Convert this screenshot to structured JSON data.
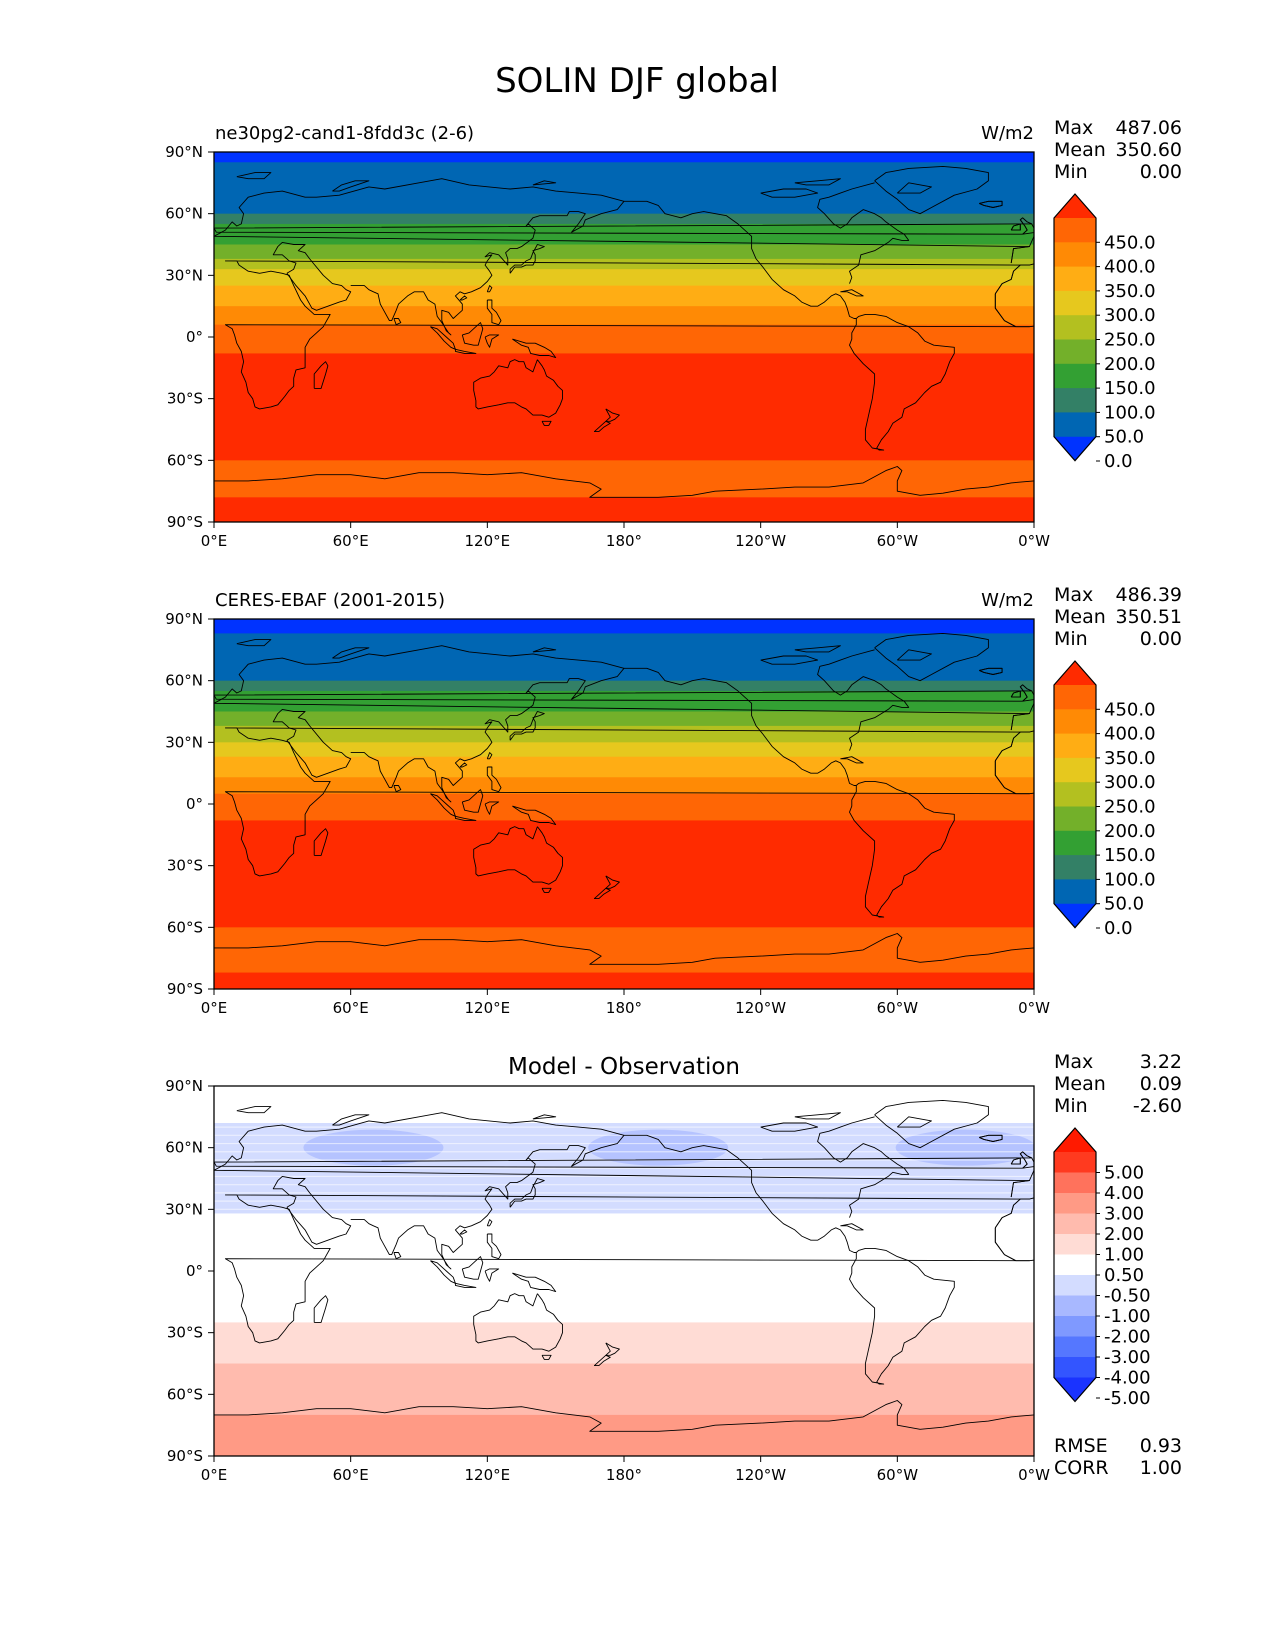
{
  "title": "SOLIN DJF global",
  "panels": [
    {
      "left_title": "ne30pg2-cand1-8fdd3c (2-6)",
      "center_title": "",
      "units": "W/m2",
      "stats": [
        {
          "label": "Max",
          "value": "487.06"
        },
        {
          "label": "Mean",
          "value": "350.60"
        },
        {
          "label": "Min",
          "value": "0.00"
        }
      ],
      "colorbar_ticks": [
        "450.0",
        "400.0",
        "350.0",
        "300.0",
        "250.0",
        "200.0",
        "150.0",
        "100.0",
        "50.0",
        "0.0"
      ],
      "extra_stats": []
    },
    {
      "left_title": "CERES-EBAF (2001-2015)",
      "center_title": "",
      "units": "W/m2",
      "stats": [
        {
          "label": "Max",
          "value": "486.39"
        },
        {
          "label": "Mean",
          "value": "350.51"
        },
        {
          "label": "Min",
          "value": "0.00"
        }
      ],
      "colorbar_ticks": [
        "450.0",
        "400.0",
        "350.0",
        "300.0",
        "250.0",
        "200.0",
        "150.0",
        "100.0",
        "50.0",
        "0.0"
      ],
      "extra_stats": []
    },
    {
      "left_title": "",
      "center_title": "Model - Observation",
      "units": "",
      "stats": [
        {
          "label": "Max",
          "value": "3.22"
        },
        {
          "label": "Mean",
          "value": "0.09"
        },
        {
          "label": "Min",
          "value": "-2.60"
        }
      ],
      "colorbar_ticks": [
        "5.00",
        "4.00",
        "3.00",
        "2.00",
        "1.00",
        "0.50",
        "-0.50",
        "-1.00",
        "-2.00",
        "-3.00",
        "-4.00",
        "-5.00"
      ],
      "extra_stats": [
        {
          "label": "RMSE",
          "value": "0.93"
        },
        {
          "label": "CORR",
          "value": "1.00"
        }
      ]
    }
  ],
  "axes": {
    "x_ticks": [
      "0°E",
      "60°E",
      "120°E",
      "180°",
      "120°W",
      "60°W",
      "0°W"
    ],
    "y_ticks": [
      "90°N",
      "60°N",
      "30°N",
      "0°",
      "30°S",
      "60°S",
      "90°S"
    ]
  },
  "colors": {
    "field_levels": [
      "#0033ff",
      "#0066b3",
      "#338066",
      "#33a033",
      "#73b02a",
      "#b3c020",
      "#e6c81e",
      "#ffad14",
      "#ff8a05",
      "#ff6605",
      "#ff2b00"
    ],
    "diff_levels": [
      "#1a33ff",
      "#3355ff",
      "#5577ff",
      "#7f99ff",
      "#a8b8ff",
      "#d3dcff",
      "#ffffff",
      "#ffdcd5",
      "#ffbbae",
      "#ff9a85",
      "#ff725c",
      "#ff3a1f",
      "#ff1a00"
    ],
    "coast": "#000000"
  },
  "chart_data": [
    {
      "type": "heatmap",
      "title": "ne30pg2-cand1-8fdd3c (2-6)",
      "units": "W/m2",
      "xlabel": "",
      "ylabel": "",
      "xlim": [
        0,
        360
      ],
      "ylim": [
        -90,
        90
      ],
      "levels": [
        0,
        50,
        100,
        150,
        200,
        250,
        300,
        350,
        400,
        450
      ],
      "lat_bands": [
        {
          "lat": [
            85,
            90
          ],
          "level": 0
        },
        {
          "lat": [
            60,
            85
          ],
          "level": 1
        },
        {
          "lat": [
            55,
            60
          ],
          "level": 2
        },
        {
          "lat": [
            45,
            55
          ],
          "level": 3
        },
        {
          "lat": [
            38,
            45
          ],
          "level": 4
        },
        {
          "lat": [
            33,
            38
          ],
          "level": 5
        },
        {
          "lat": [
            25,
            33
          ],
          "level": 6
        },
        {
          "lat": [
            15,
            25
          ],
          "level": 7
        },
        {
          "lat": [
            6,
            15
          ],
          "level": 8
        },
        {
          "lat": [
            -8,
            6
          ],
          "level": 9
        },
        {
          "lat": [
            -60,
            -8
          ],
          "level": 10
        },
        {
          "lat": [
            -78,
            -60
          ],
          "level": 9
        },
        {
          "lat": [
            -90,
            -78
          ],
          "level": 10
        }
      ],
      "stats": {
        "max": 487.06,
        "mean": 350.6,
        "min": 0.0
      }
    },
    {
      "type": "heatmap",
      "title": "CERES-EBAF (2001-2015)",
      "units": "W/m2",
      "xlabel": "",
      "ylabel": "",
      "xlim": [
        0,
        360
      ],
      "ylim": [
        -90,
        90
      ],
      "levels": [
        0,
        50,
        100,
        150,
        200,
        250,
        300,
        350,
        400,
        450
      ],
      "lat_bands": [
        {
          "lat": [
            83,
            90
          ],
          "level": 0
        },
        {
          "lat": [
            60,
            83
          ],
          "level": 1
        },
        {
          "lat": [
            55,
            60
          ],
          "level": 2
        },
        {
          "lat": [
            45,
            55
          ],
          "level": 3
        },
        {
          "lat": [
            38,
            45
          ],
          "level": 4
        },
        {
          "lat": [
            30,
            38
          ],
          "level": 5
        },
        {
          "lat": [
            23,
            30
          ],
          "level": 6
        },
        {
          "lat": [
            13,
            23
          ],
          "level": 7
        },
        {
          "lat": [
            5,
            13
          ],
          "level": 8
        },
        {
          "lat": [
            -8,
            5
          ],
          "level": 9
        },
        {
          "lat": [
            -60,
            -8
          ],
          "level": 10
        },
        {
          "lat": [
            -82,
            -60
          ],
          "level": 9
        },
        {
          "lat": [
            -90,
            -82
          ],
          "level": 10
        }
      ],
      "stats": {
        "max": 486.39,
        "mean": 350.51,
        "min": 0.0
      }
    },
    {
      "type": "heatmap",
      "title": "Model - Observation",
      "units": "",
      "xlabel": "",
      "ylabel": "",
      "xlim": [
        0,
        360
      ],
      "ylim": [
        -90,
        90
      ],
      "levels": [
        -5.0,
        -4.0,
        -3.0,
        -2.0,
        -1.0,
        -0.5,
        0.5,
        1.0,
        2.0,
        3.0,
        4.0,
        5.0
      ],
      "lat_bands": [
        {
          "lat": [
            72,
            90
          ],
          "level": 6
        },
        {
          "lat": [
            50,
            72
          ],
          "level": 5
        },
        {
          "lat": [
            28,
            50
          ],
          "level": 5
        },
        {
          "lat": [
            -25,
            28
          ],
          "level": 6
        },
        {
          "lat": [
            -45,
            -25
          ],
          "level": 7
        },
        {
          "lat": [
            -70,
            -45
          ],
          "level": 8
        },
        {
          "lat": [
            -90,
            -70
          ],
          "level": 9
        }
      ],
      "stats": {
        "max": 3.22,
        "mean": 0.09,
        "min": -2.6,
        "rmse": 0.93,
        "corr": 1.0
      }
    }
  ]
}
